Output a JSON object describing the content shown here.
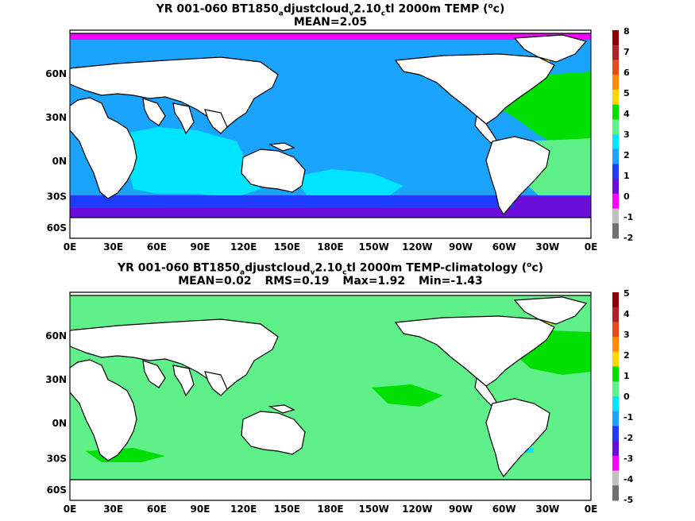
{
  "panels": [
    {
      "title_parts": [
        "YR 001-060 BT1850",
        "a",
        "djustcloud",
        "v",
        "2.10",
        "c",
        "tl 2000m TEMP (",
        "o",
        "c)"
      ],
      "stats": [
        "MEAN=2.05"
      ],
      "colorbar_ticks": [
        "8",
        "7",
        "6",
        "5",
        "4",
        "3",
        "2",
        "1",
        "0",
        "-1",
        "-2"
      ],
      "colorbar_colors": [
        "#8b0000",
        "#b22222",
        "#e8491d",
        "#ff8c00",
        "#ffd700",
        "#00e000",
        "#5ff08a",
        "#00e5ff",
        "#1aa3ff",
        "#1e3cff",
        "#6a0dd8",
        "#ff00ff",
        "#c0c0c0",
        "#707070"
      ]
    },
    {
      "title_parts": [
        "YR 001-060 BT1850",
        "a",
        "djustcloud",
        "v",
        "2.10",
        "c",
        "tl 2000m TEMP-climatology (",
        "o",
        "c)"
      ],
      "stats": [
        "MEAN=0.02",
        "RMS=0.19",
        "Max=1.92",
        "Min=-1.43"
      ],
      "colorbar_ticks": [
        "5",
        "4",
        "3",
        "2",
        "1",
        "0",
        "-1",
        "-2",
        "-3",
        "-4",
        "-5"
      ],
      "colorbar_colors": [
        "#8b0000",
        "#b22222",
        "#e8491d",
        "#ff8c00",
        "#ffd700",
        "#00e000",
        "#5ff08a",
        "#00e5ff",
        "#1aa3ff",
        "#1e3cff",
        "#6a0dd8",
        "#ff00ff",
        "#c0c0c0",
        "#707070"
      ]
    }
  ],
  "lon_ticks": [
    "0E",
    "30E",
    "60E",
    "90E",
    "120E",
    "150E",
    "180E",
    "150W",
    "120W",
    "90W",
    "60W",
    "30W",
    "0E"
  ],
  "lat_ticks": [
    "60N",
    "30N",
    "0N",
    "30S",
    "60S"
  ],
  "colors": {
    "land": "#ffffff",
    "coast": "#000000",
    "ocean_top": "#1aa3ff",
    "ocean_bottom": "#5ff08a"
  }
}
